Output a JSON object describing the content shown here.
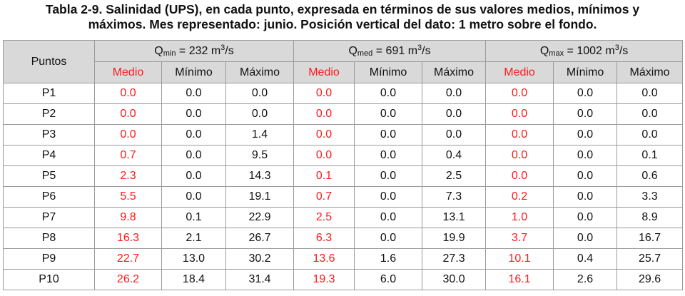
{
  "caption": {
    "line1": "Tabla 2-9. Salinidad (UPS), en cada punto, expresada en términos de sus valores medios, mínimos y",
    "line2": "máximos. Mes representado: junio. Posición vertical del dato: 1 metro sobre el fondo."
  },
  "header": {
    "puntos": "Puntos",
    "groups": [
      {
        "q": "Q",
        "sub": "min",
        "value": " = 232 m",
        "sup": "3",
        "unit": "/s"
      },
      {
        "q": "Q",
        "sub": "med",
        "value": " = 691 m",
        "sup": "3",
        "unit": "/s"
      },
      {
        "q": "Q",
        "sub": "max",
        "value": " = 1002 m",
        "sup": "3",
        "unit": "/s"
      }
    ],
    "sub_cols": [
      "Medio",
      "Mínimo",
      "Máximo"
    ]
  },
  "rows": [
    {
      "p": "P1",
      "v": [
        "0.0",
        "0.0",
        "0.0",
        "0.0",
        "0.0",
        "0.0",
        "0.0",
        "0.0",
        "0.0"
      ]
    },
    {
      "p": "P2",
      "v": [
        "0.0",
        "0.0",
        "0.0",
        "0.0",
        "0.0",
        "0.0",
        "0.0",
        "0.0",
        "0.0"
      ]
    },
    {
      "p": "P3",
      "v": [
        "0.0",
        "0.0",
        "1.4",
        "0.0",
        "0.0",
        "0.0",
        "0.0",
        "0.0",
        "0.0"
      ]
    },
    {
      "p": "P4",
      "v": [
        "0.7",
        "0.0",
        "9.5",
        "0.0",
        "0.0",
        "0.4",
        "0.0",
        "0.0",
        "0.1"
      ]
    },
    {
      "p": "P5",
      "v": [
        "2.3",
        "0.0",
        "14.3",
        "0.1",
        "0.0",
        "2.5",
        "0.0",
        "0.0",
        "0.6"
      ]
    },
    {
      "p": "P6",
      "v": [
        "5.5",
        "0.0",
        "19.1",
        "0.7",
        "0.0",
        "7.3",
        "0.2",
        "0.0",
        "3.3"
      ]
    },
    {
      "p": "P7",
      "v": [
        "9.8",
        "0.1",
        "22.9",
        "2.5",
        "0.0",
        "13.1",
        "1.0",
        "0.0",
        "8.9"
      ]
    },
    {
      "p": "P8",
      "v": [
        "16.3",
        "2.1",
        "26.7",
        "6.3",
        "0.0",
        "19.9",
        "3.7",
        "0.0",
        "16.7"
      ]
    },
    {
      "p": "P9",
      "v": [
        "22.7",
        "13.0",
        "30.2",
        "13.6",
        "1.6",
        "27.3",
        "10.1",
        "0.4",
        "25.7"
      ]
    },
    {
      "p": "P10",
      "v": [
        "26.2",
        "18.4",
        "31.4",
        "19.3",
        "6.0",
        "30.0",
        "16.1",
        "2.6",
        "29.6"
      ]
    }
  ],
  "colors": {
    "medio": "#ff1a1a",
    "header_bg": "#d9d9d9",
    "border": "#9a9a9a"
  }
}
